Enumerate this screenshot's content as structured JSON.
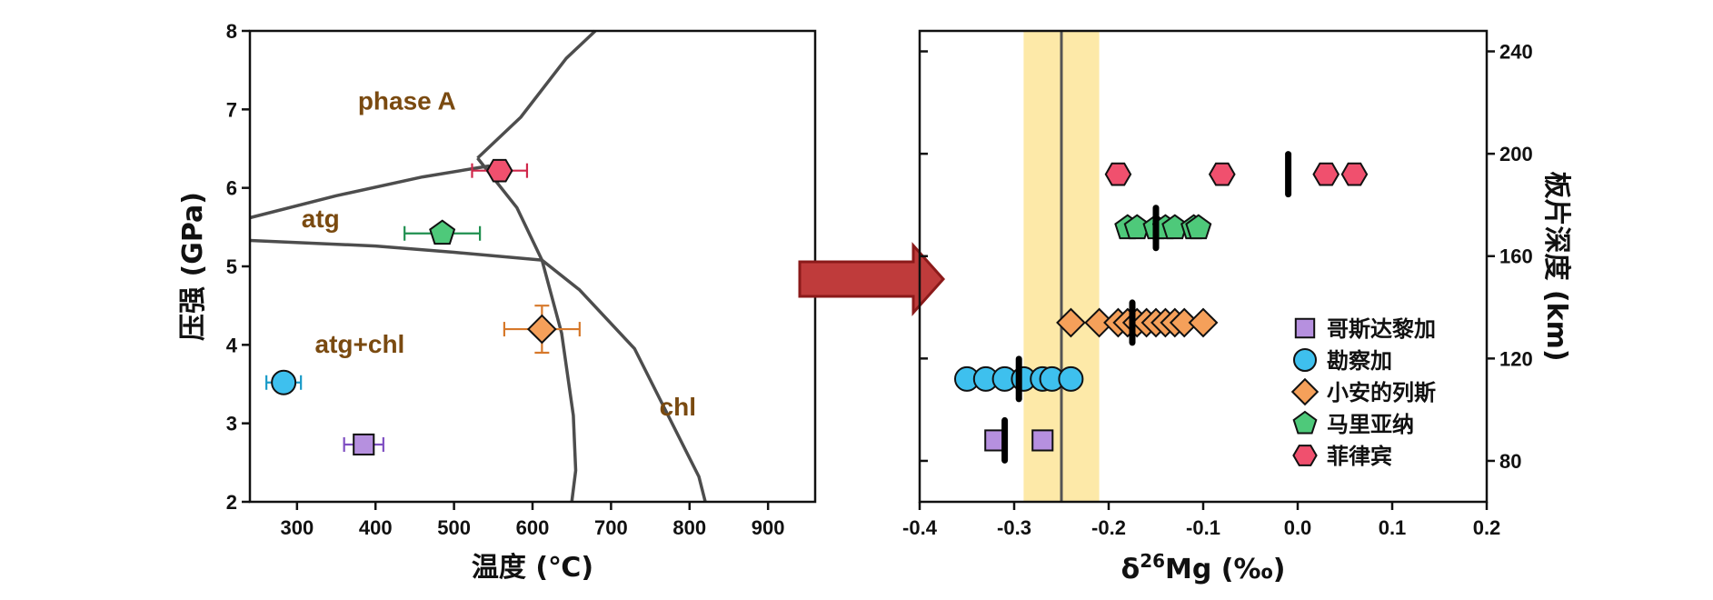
{
  "colors": {
    "axis": "#111111",
    "boundary": "#4d4d4d",
    "region_label": "#7a4a10",
    "band": "#fde9a8",
    "band_line": "#555555",
    "arrow_fill": "#bf3b3b",
    "arrow_stroke": "#8b1a1a",
    "mean_marker": "#000000"
  },
  "chart_data": [
    {
      "type": "scatter",
      "xlabel": "温度 (℃)",
      "ylabel": "压强 (GPa)",
      "xlim": [
        240,
        960
      ],
      "ylim": [
        2,
        8
      ],
      "xticks": [
        300,
        400,
        500,
        600,
        700,
        800,
        900
      ],
      "yticks": [
        2,
        3,
        4,
        5,
        6,
        7,
        8
      ],
      "region_labels": [
        {
          "text": "phase A",
          "x": 440,
          "y": 7.0
        },
        {
          "text": "atg",
          "x": 330,
          "y": 5.5
        },
        {
          "text": "atg+chl",
          "x": 380,
          "y": 3.9
        },
        {
          "text": "chl",
          "x": 785,
          "y": 3.1
        }
      ],
      "boundaries": [
        {
          "points": [
            [
              240,
              5.62
            ],
            [
              350,
              5.9
            ],
            [
              460,
              6.14
            ],
            [
              545,
              6.28
            ]
          ]
        },
        {
          "points": [
            [
              240,
              5.33
            ],
            [
              400,
              5.26
            ],
            [
              500,
              5.18
            ],
            [
              612,
              5.08
            ]
          ]
        },
        {
          "points": [
            [
              530,
              6.38
            ],
            [
              585,
              6.9
            ],
            [
              643,
              7.65
            ],
            [
              680,
              8.0
            ]
          ]
        },
        {
          "points": [
            [
              530,
              6.38
            ],
            [
              580,
              5.75
            ],
            [
              612,
              5.08
            ],
            [
              637,
              4.15
            ],
            [
              652,
              3.1
            ],
            [
              655,
              2.4
            ],
            [
              650,
              2.0
            ]
          ]
        },
        {
          "points": [
            [
              612,
              5.08
            ],
            [
              660,
              4.7
            ],
            [
              730,
              3.95
            ],
            [
              812,
              2.32
            ],
            [
              820,
              2.0
            ]
          ]
        }
      ],
      "series": [
        {
          "name": "菲律宾",
          "marker": "hexagon",
          "color": "#f0506e",
          "points": [
            {
              "x": 558,
              "y": 6.22,
              "xerr": 35
            }
          ]
        },
        {
          "name": "马里亚纳",
          "marker": "pentagon",
          "color": "#4ec97a",
          "points": [
            {
              "x": 485,
              "y": 5.42,
              "xerr": 48
            }
          ]
        },
        {
          "name": "小安的列斯",
          "marker": "diamond",
          "color": "#f5a05a",
          "points": [
            {
              "x": 612,
              "y": 4.2,
              "xerr": 48,
              "yerr": 0.3
            }
          ]
        },
        {
          "name": "勘察加",
          "marker": "circle",
          "color": "#3ec0ee",
          "points": [
            {
              "x": 283,
              "y": 3.52,
              "xerr": 22
            }
          ]
        },
        {
          "name": "哥斯达黎加",
          "marker": "square",
          "color": "#b690df",
          "points": [
            {
              "x": 385,
              "y": 2.73,
              "xerr": 25
            }
          ]
        }
      ],
      "error_colors": {
        "菲律宾": "#d0274a",
        "马里亚纳": "#1f8f4f",
        "小安的列斯": "#d6782a",
        "勘察加": "#1a9bc8",
        "哥斯达黎加": "#7f4fc2"
      }
    },
    {
      "type": "scatter",
      "xlabel_prefix": "δ",
      "xlabel_sup": "26",
      "xlabel_suffix": "Mg (‰)",
      "ylabel": "板片深度 (km)",
      "xlim": [
        -0.4,
        0.2
      ],
      "ylim": [
        64,
        248
      ],
      "xticks": [
        "-0.4",
        "-0.3",
        "-0.2",
        "-0.1",
        "0.0",
        "0.1",
        "0.2"
      ],
      "yticks_right": [
        80,
        120,
        160,
        200,
        240
      ],
      "band": {
        "x0": -0.29,
        "x1": -0.21,
        "center": -0.25
      },
      "series": [
        {
          "name": "哥斯达黎加",
          "marker": "square",
          "color": "#b690df",
          "y": 88,
          "x": [
            -0.32,
            -0.27
          ],
          "mean": -0.31
        },
        {
          "name": "勘察加",
          "marker": "circle",
          "color": "#3ec0ee",
          "y": 112,
          "x": [
            -0.35,
            -0.33,
            -0.31,
            -0.29,
            -0.27,
            -0.26,
            -0.24
          ],
          "mean": -0.295
        },
        {
          "name": "小安的列斯",
          "marker": "diamond",
          "color": "#f5a05a",
          "y": 134,
          "x": [
            -0.24,
            -0.21,
            -0.19,
            -0.18,
            -0.17,
            -0.16,
            -0.15,
            -0.14,
            -0.13,
            -0.12,
            -0.1
          ],
          "mean": -0.175
        },
        {
          "name": "马里亚纳",
          "marker": "pentagon",
          "color": "#4ec97a",
          "y": 171,
          "x": [
            -0.18,
            -0.17,
            -0.15,
            -0.14,
            -0.13,
            -0.11,
            -0.105
          ],
          "mean": -0.15
        },
        {
          "name": "菲律宾",
          "marker": "hexagon",
          "color": "#f0506e",
          "y": 192,
          "x": [
            -0.19,
            -0.08,
            0.03,
            0.06
          ],
          "mean": -0.01
        }
      ],
      "legend": {
        "placement": "bottom-right",
        "entries": [
          {
            "label": "哥斯达黎加",
            "marker": "square",
            "color": "#b690df"
          },
          {
            "label": "勘察加",
            "marker": "circle",
            "color": "#3ec0ee"
          },
          {
            "label": "小安的列斯",
            "marker": "diamond",
            "color": "#f5a05a"
          },
          {
            "label": "马里亚纳",
            "marker": "pentagon",
            "color": "#4ec97a"
          },
          {
            "label": "菲律宾",
            "marker": "hexagon",
            "color": "#f0506e"
          }
        ]
      }
    }
  ]
}
